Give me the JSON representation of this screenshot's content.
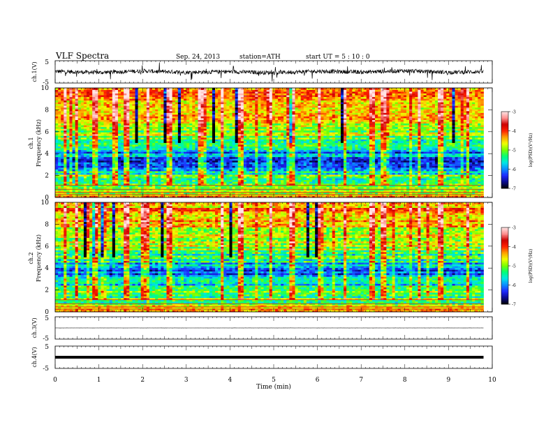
{
  "header": {
    "title": "VLF  Spectra",
    "date": "Sep. 24, 2013",
    "station": "station=ATH",
    "start": "start  UT  =   5  : 10 : 0"
  },
  "colors": {
    "background": "#ffffff",
    "axes": "#000000",
    "trace": "#000000",
    "colormap": [
      "#000000",
      "#0a0a8c",
      "#1e28ff",
      "#0a8cff",
      "#00e6e6",
      "#00ff78",
      "#78ff00",
      "#f0ff00",
      "#ffa000",
      "#ff2000",
      "#cc0000",
      "#ff9090",
      "#ffe6e6"
    ]
  },
  "chart_data": [
    {
      "type": "line",
      "panel": "ch1-waveform",
      "ylabel": "ch.1(V)",
      "ylim": [
        -5,
        5
      ],
      "yticks": [
        "5",
        "-5"
      ],
      "xlim": [
        0,
        10
      ],
      "description_values": {
        "mean": 0,
        "typical_amplitude": 1
      },
      "series": [
        {
          "x": [
            0,
            1,
            2,
            3,
            4,
            5,
            6,
            7,
            8,
            9,
            9.8
          ],
          "values": [
            0.2,
            -0.3,
            0.4,
            -0.2,
            0.1,
            -0.4,
            0.3,
            -0.1,
            0.5,
            -0.2,
            0.1
          ]
        }
      ]
    },
    {
      "type": "heatmap",
      "panel": "ch1-spectrogram",
      "ylabel": "Frequency  (kHz)",
      "channel_label": "ch.1",
      "ylim": [
        0,
        10
      ],
      "yticks": [
        "0",
        "2",
        "4",
        "6",
        "8",
        "10"
      ],
      "xlim": [
        0,
        10
      ],
      "data_xmax": 9.8,
      "zlabel": "log(PSD)(V²/Hz)",
      "zlim": [
        -7,
        -3
      ],
      "zticks": [
        "-3",
        "-4",
        "-5",
        "-6",
        "-7"
      ],
      "profile_freq_khz": [
        0,
        0.5,
        1,
        1.5,
        2,
        2.5,
        3,
        3.5,
        4,
        4.5,
        5,
        6,
        7,
        8,
        9,
        10
      ],
      "profile_logpsd": [
        -3.8,
        -4.9,
        -5.2,
        -5.6,
        -5.3,
        -6.0,
        -6.1,
        -6.2,
        -6.0,
        -5.7,
        -5.2,
        -4.9,
        -4.6,
        -4.4,
        -4.3,
        -4.2
      ],
      "burst_times_min": [
        0.2,
        0.45,
        0.9,
        1.35,
        1.6,
        2.1,
        2.6,
        3.3,
        3.8,
        4.2,
        4.9,
        5.4,
        6.0,
        6.6,
        7.2,
        7.5,
        8.3,
        8.8,
        9.4
      ]
    },
    {
      "type": "heatmap",
      "panel": "ch2-spectrogram",
      "ylabel": "Frequency  (kHz)",
      "channel_label": "ch.2",
      "ylim": [
        0,
        10
      ],
      "yticks": [
        "0",
        "2",
        "4",
        "6",
        "8",
        "10"
      ],
      "xlim": [
        0,
        10
      ],
      "data_xmax": 9.8,
      "zlabel": "log(PSD)(V²/Hz)",
      "zlim": [
        -7,
        -3
      ],
      "zticks": [
        "-3",
        "-4",
        "-5",
        "-6",
        "-7"
      ],
      "profile_freq_khz": [
        0,
        0.5,
        1,
        1.5,
        2,
        2.5,
        3,
        3.5,
        4,
        4.5,
        5,
        6,
        7,
        8,
        9,
        10
      ],
      "profile_logpsd": [
        -3.9,
        -5.0,
        -5.0,
        -5.3,
        -5.2,
        -5.6,
        -5.8,
        -6.0,
        -5.9,
        -5.7,
        -5.3,
        -5.0,
        -4.7,
        -4.5,
        -4.3,
        -4.2
      ],
      "burst_times_min": [
        0.2,
        0.45,
        0.9,
        1.6,
        2.0,
        2.6,
        3.8,
        4.2,
        4.9,
        5.4,
        6.0,
        6.6,
        7.2,
        7.5,
        8.3,
        8.8,
        9.4
      ]
    },
    {
      "type": "line",
      "panel": "ch3-waveform",
      "ylabel": "ch.3(V)",
      "ylim": [
        -5,
        5
      ],
      "yticks": [
        "5",
        "-5"
      ],
      "xlim": [
        0,
        10
      ],
      "series": [
        {
          "x": [
            0,
            9.8
          ],
          "values": [
            0,
            0
          ]
        }
      ]
    },
    {
      "type": "line",
      "panel": "ch4-waveform",
      "ylabel": "ch.4(V)",
      "ylim": [
        -5,
        5
      ],
      "yticks": [
        "5",
        "-5"
      ],
      "xlim": [
        0,
        10
      ],
      "xlabel": "Time  (min)",
      "xticks": [
        "0",
        "1",
        "2",
        "3",
        "4",
        "5",
        "6",
        "7",
        "8",
        "9",
        "10"
      ],
      "series": [
        {
          "x": [
            0,
            9.8
          ],
          "values": [
            0,
            0
          ]
        }
      ]
    }
  ]
}
